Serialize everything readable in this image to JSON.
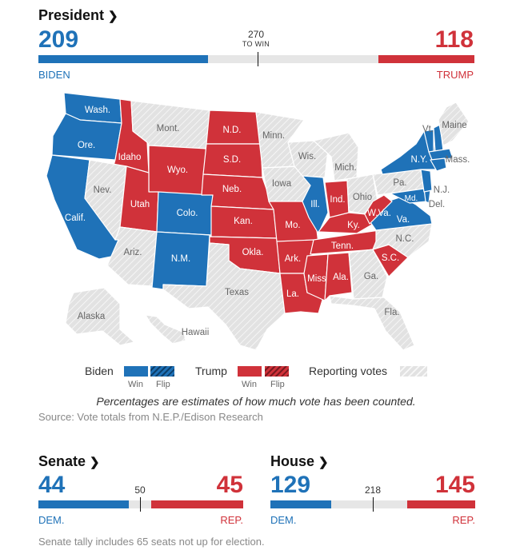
{
  "president": {
    "title": "President",
    "dem_votes": "209",
    "rep_votes": "118",
    "dem_label": "BIDEN",
    "rep_label": "TRUMP",
    "threshold_value": "270",
    "threshold_label": "TO WIN",
    "dem_fraction": 0.3885,
    "rep_fraction": 0.2193,
    "threshold_fraction": 0.5019
  },
  "colors": {
    "dem": "#1f72b8",
    "rep": "#d0323a",
    "reporting": "#e2e2e2"
  },
  "map": {
    "states": {
      "wa": "Wash.",
      "or": "Ore.",
      "ca": "Calif.",
      "id": "Idaho",
      "nv": "Nev.",
      "mt": "Mont.",
      "wy": "Wyo.",
      "ut": "Utah",
      "az": "Ariz.",
      "co": "Colo.",
      "nm": "N.M.",
      "nd": "N.D.",
      "sd": "S.D.",
      "ne": "Neb.",
      "ks": "Kan.",
      "ok": "Okla.",
      "tx": "Texas",
      "mn": "Minn.",
      "ia": "Iowa",
      "mo": "Mo.",
      "ar": "Ark.",
      "la": "La.",
      "wi": "Wis.",
      "il": "Ill.",
      "ms": "Miss",
      "mi": "Mich.",
      "in": "Ind.",
      "ky": "Ky.",
      "tn": "Tenn.",
      "al": "Ala.",
      "oh": "Ohio",
      "wv": "W.Va.",
      "va": "Va.",
      "nc": "N.C.",
      "sc": "S.C.",
      "ga": "Ga.",
      "fl": "Fla.",
      "pa": "Pa.",
      "ny": "N.Y.",
      "vt": "Vt.",
      "me": "Maine",
      "ma": "Mass.",
      "nj": "N.J.",
      "de": "Del.",
      "md": "Md.",
      "ak": "Alaska",
      "hi": "Hawaii"
    }
  },
  "legend": {
    "biden": "Biden",
    "trump": "Trump",
    "reporting": "Reporting votes",
    "win": "Win",
    "flip": "Flip"
  },
  "note": "Percentages are estimates of how much vote has been counted.",
  "source": "Source: Vote totals from N.E.P./Edison Research",
  "senate": {
    "title": "Senate",
    "dem_votes": "44",
    "rep_votes": "45",
    "mid_value": "50",
    "dem_label": "DEM.",
    "rep_label": "REP.",
    "dem_fraction": 0.44,
    "rep_fraction": 0.45,
    "footnote": "Senate tally includes 65 seats not up for election."
  },
  "house": {
    "title": "House",
    "dem_votes": "129",
    "rep_votes": "145",
    "mid_value": "218",
    "dem_label": "DEM.",
    "rep_label": "REP.",
    "dem_fraction": 0.2966,
    "rep_fraction": 0.3333
  }
}
